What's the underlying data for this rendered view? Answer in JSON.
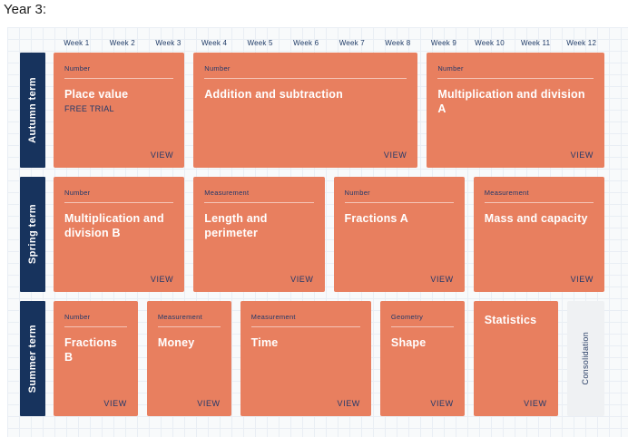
{
  "page": {
    "title": "Year 3:"
  },
  "colors": {
    "card": "#E87F5F",
    "navy": "#17335D",
    "board_background": "#F8FAFB",
    "grid_line": "#E9EEF4",
    "consolidation_background": "#EFF1F3"
  },
  "weeks": [
    "Week 1",
    "Week 2",
    "Week 3",
    "Week 4",
    "Week 5",
    "Week 6",
    "Week 7",
    "Week 8",
    "Week 9",
    "Week 10",
    "Week 11",
    "Week 12"
  ],
  "terms": [
    {
      "label": "Autumn term",
      "blocks": [
        {
          "category": "Number",
          "title": "Place value",
          "subtitle": "FREE TRIAL",
          "action": "VIEW",
          "weeks": 3
        },
        {
          "category": "Number",
          "title": "Addition and subtraction",
          "action": "VIEW",
          "weeks": 5
        },
        {
          "category": "Number",
          "title": "Multiplication and division A",
          "action": "VIEW",
          "weeks": 4
        }
      ]
    },
    {
      "label": "Spring term",
      "blocks": [
        {
          "category": "Number",
          "title": "Multiplication and division B",
          "action": "VIEW",
          "weeks": 3
        },
        {
          "category": "Measurement",
          "title": "Length and perimeter",
          "action": "VIEW",
          "weeks": 3
        },
        {
          "category": "Number",
          "title": "Fractions A",
          "action": "VIEW",
          "weeks": 3
        },
        {
          "category": "Measurement",
          "title": "Mass and capacity",
          "action": "VIEW",
          "weeks": 3
        }
      ]
    },
    {
      "label": "Summer term",
      "blocks": [
        {
          "category": "Number",
          "title": "Fractions B",
          "action": "VIEW",
          "weeks": 2
        },
        {
          "category": "Measurement",
          "title": "Money",
          "action": "VIEW",
          "weeks": 2
        },
        {
          "category": "Measurement",
          "title": "Time",
          "action": "VIEW",
          "weeks": 3
        },
        {
          "category": "Geometry",
          "title": "Shape",
          "action": "VIEW",
          "weeks": 2
        },
        {
          "title": "Statistics",
          "action": "VIEW",
          "weeks": 2
        },
        {
          "title": "Consolidation",
          "weeks": 1,
          "type": "consolidation"
        }
      ]
    }
  ]
}
